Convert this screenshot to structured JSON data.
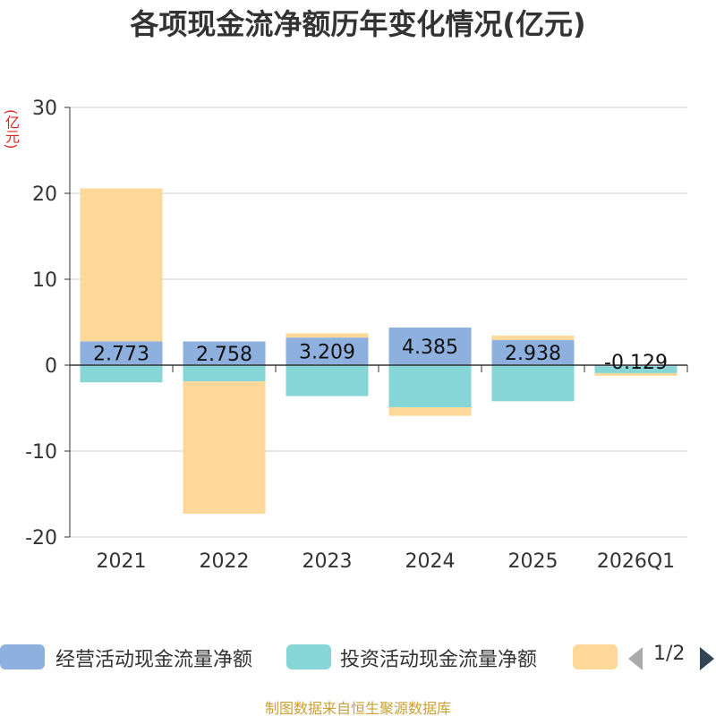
{
  "chart_data": {
    "type": "bar",
    "stacked": true,
    "title": "各项现金流净额历年变化情况(亿元)",
    "ylabel": "(亿元)",
    "ylim": [
      -20,
      30
    ],
    "yticks": [
      -20,
      -10,
      0,
      10,
      20,
      30
    ],
    "grid": true,
    "legend_position": "bottom",
    "categories": [
      "2021",
      "2022",
      "2023",
      "2024",
      "2025",
      "2026Q1"
    ],
    "series": [
      {
        "name": "经营活动现金流量净额",
        "color": "#8eb0de",
        "values": [
          2.773,
          2.758,
          3.209,
          4.385,
          2.938,
          -0.129
        ],
        "show_labels": true
      },
      {
        "name": "投资活动现金流量净额",
        "color": "#86d6d8",
        "values": [
          -2.0,
          -1.9,
          -3.6,
          -4.9,
          -4.2,
          -0.8
        ]
      },
      {
        "name": "",
        "color": "#fdd898",
        "values": [
          17.8,
          -15.4,
          0.5,
          -1.0,
          0.5,
          -0.3
        ]
      }
    ]
  },
  "legend": {
    "page_indicator": "1/2"
  },
  "source_note": "制图数据来自恒生聚源数据库"
}
